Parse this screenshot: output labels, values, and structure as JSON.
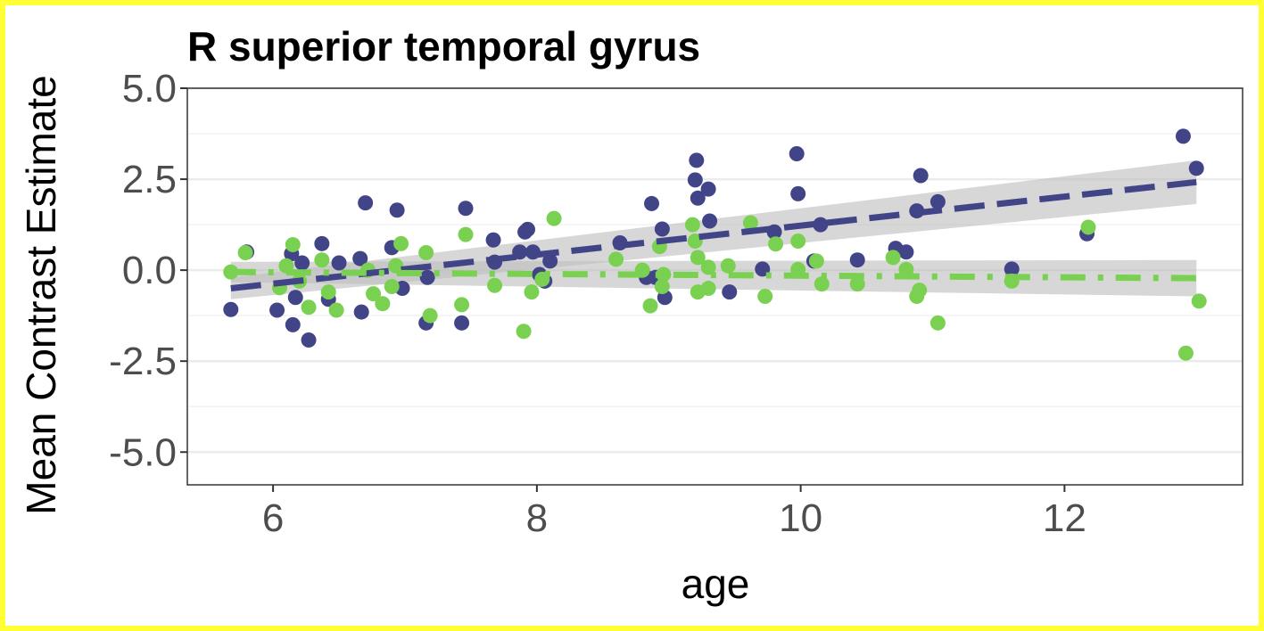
{
  "chart_data": {
    "type": "scatter",
    "title": "R superior temporal gyrus",
    "xlabel": "age",
    "ylabel": "Mean Contrast Estimate",
    "xlim": [
      5.35,
      13.35
    ],
    "ylim": [
      -5.9,
      5.0
    ],
    "x_ticks": [
      6,
      8,
      10,
      12
    ],
    "x_tick_labels": [
      "6",
      "8",
      "10",
      "12"
    ],
    "y_ticks": [
      5.0,
      2.5,
      0.0,
      -2.5,
      -5.0
    ],
    "y_tick_labels": [
      "5.0",
      "2.5",
      "0.0",
      "-2.5",
      "-5.0"
    ],
    "grid": true,
    "legend": "none",
    "colors": {
      "series1": "#414487",
      "series2": "#7AD151",
      "band": "#bfbfbf"
    },
    "series": [
      {
        "color": "#414487",
        "line_style": "dashed",
        "points": [
          [
            5.68,
            -1.08
          ],
          [
            5.8,
            0.5
          ],
          [
            6.03,
            -1.1
          ],
          [
            6.15,
            -1.5
          ],
          [
            6.14,
            0.45
          ],
          [
            6.17,
            -0.75
          ],
          [
            6.22,
            0.2
          ],
          [
            6.27,
            -1.92
          ],
          [
            6.37,
            0.73
          ],
          [
            6.42,
            -0.8
          ],
          [
            6.5,
            0.2
          ],
          [
            6.66,
            0.32
          ],
          [
            6.67,
            -1.15
          ],
          [
            6.7,
            1.85
          ],
          [
            6.9,
            0.62
          ],
          [
            6.94,
            1.65
          ],
          [
            6.98,
            -0.5
          ],
          [
            7.16,
            -1.45
          ],
          [
            7.17,
            -0.2
          ],
          [
            7.43,
            -1.45
          ],
          [
            7.46,
            1.7
          ],
          [
            7.67,
            0.83
          ],
          [
            7.68,
            0.22
          ],
          [
            7.87,
            0.5
          ],
          [
            7.91,
            1.05
          ],
          [
            7.93,
            1.12
          ],
          [
            7.97,
            0.5
          ],
          [
            8.02,
            -0.12
          ],
          [
            8.06,
            -0.3
          ],
          [
            8.1,
            0.25
          ],
          [
            8.63,
            0.75
          ],
          [
            8.83,
            -0.2
          ],
          [
            8.87,
            1.83
          ],
          [
            8.9,
            -0.2
          ],
          [
            8.95,
            1.13
          ],
          [
            8.97,
            -0.75
          ],
          [
            9.2,
            2.48
          ],
          [
            9.21,
            3.02
          ],
          [
            9.22,
            1.98
          ],
          [
            9.3,
            2.23
          ],
          [
            9.31,
            1.35
          ],
          [
            9.46,
            -0.6
          ],
          [
            9.71,
            0.03
          ],
          [
            9.8,
            1.05
          ],
          [
            9.97,
            3.2
          ],
          [
            9.98,
            2.1
          ],
          [
            10.1,
            0.25
          ],
          [
            10.15,
            1.25
          ],
          [
            10.43,
            0.28
          ],
          [
            10.72,
            0.6
          ],
          [
            10.8,
            0.5
          ],
          [
            10.88,
            1.63
          ],
          [
            10.91,
            2.6
          ],
          [
            11.04,
            1.88
          ],
          [
            11.6,
            0.03
          ],
          [
            12.17,
            1.0
          ],
          [
            12.9,
            3.68
          ],
          [
            13.0,
            2.8
          ]
        ],
        "fit": {
          "x": [
            5.68,
            13.0
          ],
          "y": [
            -0.5,
            2.42
          ],
          "band_half_width": [
            0.3,
            0.6
          ]
        }
      },
      {
        "color": "#7AD151",
        "line_style": "dotdash",
        "points": [
          [
            5.68,
            -0.05
          ],
          [
            5.79,
            0.48
          ],
          [
            6.05,
            -0.48
          ],
          [
            6.1,
            0.12
          ],
          [
            6.15,
            0.7
          ],
          [
            6.2,
            -0.3
          ],
          [
            6.27,
            -1.02
          ],
          [
            6.37,
            0.28
          ],
          [
            6.42,
            -0.6
          ],
          [
            6.48,
            -1.1
          ],
          [
            6.72,
            0.0
          ],
          [
            6.76,
            -0.65
          ],
          [
            6.83,
            -0.92
          ],
          [
            6.9,
            -0.45
          ],
          [
            6.93,
            0.12
          ],
          [
            6.97,
            0.73
          ],
          [
            7.16,
            0.48
          ],
          [
            7.19,
            -1.25
          ],
          [
            7.43,
            -0.95
          ],
          [
            7.46,
            0.98
          ],
          [
            7.68,
            -0.42
          ],
          [
            7.9,
            -1.68
          ],
          [
            7.96,
            -0.6
          ],
          [
            8.04,
            -0.25
          ],
          [
            8.13,
            1.42
          ],
          [
            8.6,
            0.3
          ],
          [
            8.8,
            0.0
          ],
          [
            8.86,
            -0.98
          ],
          [
            8.93,
            0.65
          ],
          [
            8.95,
            -0.45
          ],
          [
            8.96,
            -0.12
          ],
          [
            9.18,
            1.25
          ],
          [
            9.2,
            0.8
          ],
          [
            9.22,
            0.35
          ],
          [
            9.22,
            -0.6
          ],
          [
            9.3,
            -0.5
          ],
          [
            9.3,
            0.08
          ],
          [
            9.45,
            0.12
          ],
          [
            9.62,
            1.3
          ],
          [
            9.73,
            -0.72
          ],
          [
            9.81,
            0.72
          ],
          [
            9.98,
            0.02
          ],
          [
            9.98,
            0.8
          ],
          [
            10.12,
            0.25
          ],
          [
            10.16,
            -0.38
          ],
          [
            10.43,
            -0.38
          ],
          [
            10.7,
            0.35
          ],
          [
            10.8,
            0.02
          ],
          [
            10.88,
            -0.72
          ],
          [
            10.9,
            -0.55
          ],
          [
            11.04,
            -1.45
          ],
          [
            11.6,
            -0.3
          ],
          [
            12.18,
            1.18
          ],
          [
            12.92,
            -2.28
          ],
          [
            13.02,
            -0.85
          ]
        ],
        "fit": {
          "x": [
            5.68,
            13.0
          ],
          "y": [
            -0.05,
            -0.22
          ],
          "band_half_width": [
            0.28,
            0.5
          ]
        }
      }
    ]
  }
}
